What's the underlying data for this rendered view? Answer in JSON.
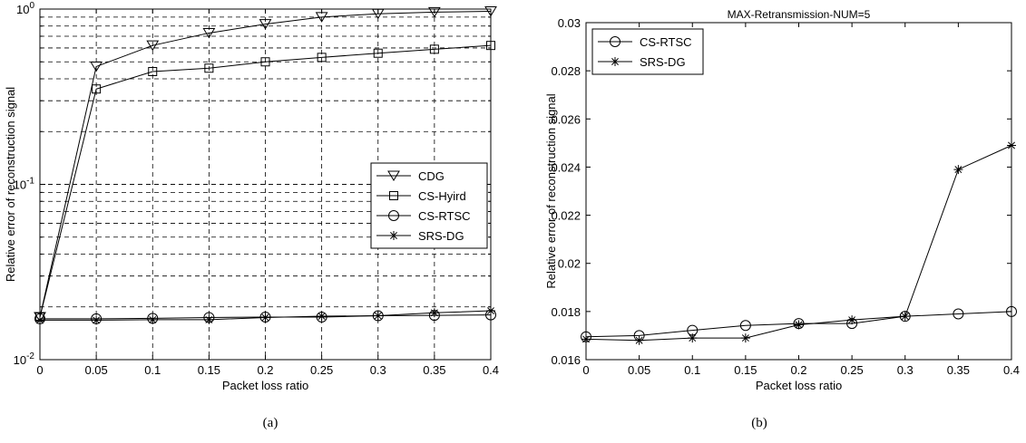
{
  "captions": {
    "a": "(a)",
    "b": "(b)"
  },
  "chart_data": [
    {
      "type": "line",
      "title": "",
      "xlabel": "Packet loss ratio",
      "ylabel": "Relative error of reconstruction signal",
      "x": [
        0,
        0.05,
        0.1,
        0.15,
        0.2,
        0.25,
        0.3,
        0.35,
        0.4
      ],
      "x_tick_labels": [
        "0",
        "0.05",
        "0.1",
        "0.15",
        "0.2",
        "0.25",
        "0.3",
        "0.35",
        "0.4"
      ],
      "xlim": [
        0,
        0.4
      ],
      "yscale": "log",
      "ylim": [
        0.01,
        1
      ],
      "y_tick_labels": [
        {
          "value": 0.01,
          "base": "10",
          "exp": "-2"
        },
        {
          "value": 0.1,
          "base": "10",
          "exp": "-1"
        },
        {
          "value": 1,
          "base": "10",
          "exp": "0"
        }
      ],
      "grid": true,
      "legend_position": "center-right",
      "series": [
        {
          "name": "CDG",
          "marker": "triangle-down",
          "values": [
            0.0175,
            0.47,
            0.62,
            0.73,
            0.82,
            0.9,
            0.94,
            0.96,
            0.97
          ]
        },
        {
          "name": "CS-Hyird",
          "marker": "square",
          "values": [
            0.0175,
            0.35,
            0.44,
            0.46,
            0.5,
            0.53,
            0.56,
            0.59,
            0.62
          ]
        },
        {
          "name": "CS-RTSC",
          "marker": "circle",
          "values": [
            0.0171,
            0.0171,
            0.0172,
            0.0174,
            0.0175,
            0.0175,
            0.0178,
            0.0179,
            0.018
          ]
        },
        {
          "name": "SRS-DG",
          "marker": "asterisk",
          "values": [
            0.0168,
            0.0168,
            0.0169,
            0.0169,
            0.0174,
            0.0177,
            0.0178,
            0.0185,
            0.019
          ]
        }
      ]
    },
    {
      "type": "line",
      "title": "MAX-Retransmission-NUM=5",
      "xlabel": "Packet loss ratio",
      "ylabel": "Relative error of reconstruction signal",
      "x": [
        0,
        0.05,
        0.1,
        0.15,
        0.2,
        0.25,
        0.3,
        0.35,
        0.4
      ],
      "x_tick_labels": [
        "0",
        "0.05",
        "0.1",
        "0.15",
        "0.2",
        "0.25",
        "0.3",
        "0.35",
        "0.4"
      ],
      "xlim": [
        0,
        0.4
      ],
      "yscale": "linear",
      "ylim": [
        0.016,
        0.03
      ],
      "y_ticks": [
        0.016,
        0.018,
        0.02,
        0.022,
        0.024,
        0.026,
        0.028,
        0.03
      ],
      "y_tick_labels": [
        "0.016",
        "0.018",
        "0.02",
        "0.022",
        "0.024",
        "0.026",
        "0.028",
        "0.03"
      ],
      "grid": false,
      "legend_position": "top-left",
      "series": [
        {
          "name": "CS-RTSC",
          "marker": "circle",
          "values": [
            0.01695,
            0.017,
            0.01722,
            0.01742,
            0.0175,
            0.0175,
            0.0178,
            0.0179,
            0.018
          ]
        },
        {
          "name": "SRS-DG",
          "marker": "asterisk",
          "values": [
            0.01685,
            0.0168,
            0.0169,
            0.0169,
            0.01745,
            0.01765,
            0.0178,
            0.0239,
            0.0249
          ]
        }
      ]
    }
  ]
}
